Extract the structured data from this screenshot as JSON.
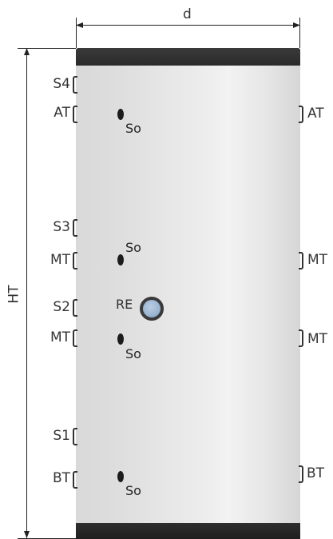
{
  "dimensions": {
    "width_label": "d",
    "height_label": "HT"
  },
  "left_connections": [
    {
      "id": "s4",
      "label": "S4"
    },
    {
      "id": "at",
      "label": "AT"
    },
    {
      "id": "s3",
      "label": "S3"
    },
    {
      "id": "mt-upper",
      "label": "MT"
    },
    {
      "id": "s2",
      "label": "S2"
    },
    {
      "id": "mt-lower",
      "label": "MT"
    },
    {
      "id": "s1",
      "label": "S1"
    },
    {
      "id": "bt",
      "label": "BT"
    }
  ],
  "right_connections": [
    {
      "id": "at",
      "label": "AT"
    },
    {
      "id": "mt-upper",
      "label": "MT"
    },
    {
      "id": "mt-lower",
      "label": "MT"
    },
    {
      "id": "bt",
      "label": "BT"
    }
  ],
  "sensor_label": "So",
  "re_label": "RE",
  "colors": {
    "cap": "#2a2a2a",
    "tank": "#e4e4e4",
    "re_port": "#9db7d3"
  }
}
